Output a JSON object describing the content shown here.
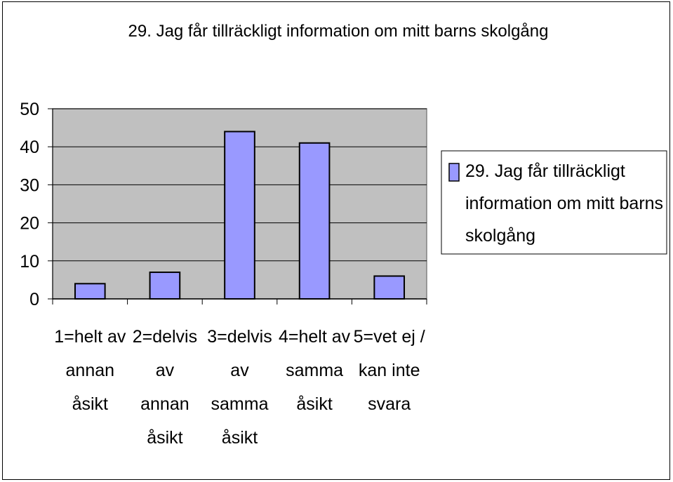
{
  "chart_data": {
    "type": "bar",
    "title": "29. Jag får tillräckligt information om mitt barns skolgång",
    "categories": [
      [
        "1=helt av",
        "annan",
        "åsikt"
      ],
      [
        "2=delvis",
        "av",
        "annan",
        "åsikt"
      ],
      [
        "3=delvis",
        "av",
        "samma",
        "åsikt"
      ],
      [
        "4=helt av",
        "samma",
        "åsikt"
      ],
      [
        "5=vet ej /",
        "kan inte",
        "svara"
      ]
    ],
    "series": [
      {
        "name": "29. Jag får tillräckligt information om mitt barns skolgång",
        "values": [
          4,
          7,
          44,
          41,
          6
        ]
      }
    ],
    "legend_lines": [
      "29. Jag får tillräckligt",
      "information om mitt barns",
      "skolgång"
    ],
    "ylim": [
      0,
      50
    ],
    "yticks": [
      "0",
      "10",
      "20",
      "30",
      "40",
      "50"
    ],
    "grid": true,
    "legend_position": "right",
    "colors": {
      "bar": "#9999ff",
      "plot_bg": "#c0c0c0",
      "grid": "#000000"
    }
  }
}
